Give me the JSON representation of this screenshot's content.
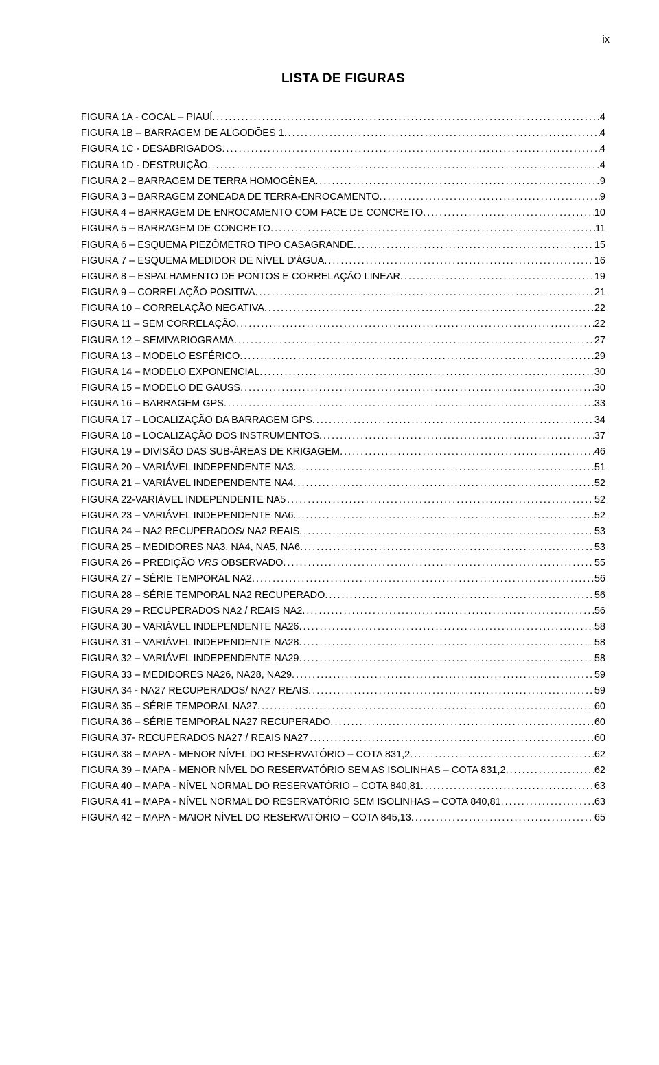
{
  "pageNumber": "ix",
  "title": "LISTA DE FIGURAS",
  "entries": [
    {
      "label": "FIGURA 1A - COCAL – PIAUÍ.",
      "page": "4"
    },
    {
      "label": "FIGURA 1B – BARRAGEM DE ALGODÕES 1.",
      "page": "4"
    },
    {
      "label": "FIGURA 1C - DESABRIGADOS.",
      "page": "4"
    },
    {
      "label": "FIGURA 1D - DESTRUIÇÃO.",
      "page": "4"
    },
    {
      "label": "FIGURA 2 – BARRAGEM DE TERRA HOMOGÊNEA.",
      "page": "9"
    },
    {
      "label": "FIGURA 3 – BARRAGEM ZONEADA DE TERRA-ENROCAMENTO.",
      "page": "9"
    },
    {
      "label": "FIGURA 4 – BARRAGEM DE ENROCAMENTO COM FACE DE CONCRETO.",
      "page": "10"
    },
    {
      "label": "FIGURA 5 – BARRAGEM DE CONCRETO.",
      "page": "11"
    },
    {
      "label": "FIGURA 6 – ESQUEMA PIEZÔMETRO TIPO CASAGRANDE.",
      "page": "15"
    },
    {
      "label": "FIGURA 7 – ESQUEMA MEDIDOR DE NÍVEL D'ÁGUA.",
      "page": "16"
    },
    {
      "label": "FIGURA 8 – ESPALHAMENTO DE PONTOS E CORRELAÇÃO LINEAR.",
      "page": "19"
    },
    {
      "label": "FIGURA 9 – CORRELAÇÃO POSITIVA.",
      "page": "21"
    },
    {
      "label": "FIGURA 10 – CORRELAÇÃO NEGATIVA.",
      "page": "22"
    },
    {
      "label": "FIGURA 11 – SEM CORRELAÇÃO.",
      "page": "22"
    },
    {
      "label": "FIGURA 12 – SEMIVARIOGRAMA.",
      "page": "27"
    },
    {
      "label": "FIGURA 13 – MODELO ESFÉRICO.",
      "page": "29"
    },
    {
      "label": "FIGURA 14 – MODELO EXPONENCIAL.",
      "page": "30"
    },
    {
      "label": "FIGURA 15 – MODELO DE GAUSS.",
      "page": "30"
    },
    {
      "label": "FIGURA 16 – BARRAGEM GPS.",
      "page": "33"
    },
    {
      "label": "FIGURA 17 – LOCALIZAÇÃO DA BARRAGEM GPS.",
      "page": "34",
      "smallcaps": true
    },
    {
      "label": "FIGURA 18 – LOCALIZAÇÃO DOS INSTRUMENTOS.",
      "page": "37"
    },
    {
      "label": "FIGURA 19 – DIVISÃO DAS SUB-ÁREAS DE KRIGAGEM.",
      "page": "46"
    },
    {
      "label": "FIGURA 20 – VARIÁVEL INDEPENDENTE NA3.",
      "page": "51"
    },
    {
      "label": "FIGURA 21 – VARIÁVEL INDEPENDENTE NA4.",
      "page": "52"
    },
    {
      "label": "FIGURA 22-VARIÁVEL INDEPENDENTE NA5",
      "page": "52"
    },
    {
      "label": "FIGURA 23 – VARIÁVEL INDEPENDENTE NA6.",
      "page": "52"
    },
    {
      "label": "FIGURA 24 – NA2 RECUPERADOS/ NA2 REAIS.",
      "page": "53"
    },
    {
      "label": "FIGURA 25 – MEDIDORES NA3, NA4, NA5, NA6.",
      "page": "53"
    },
    {
      "label": "FIGURA 26 – PREDIÇÃO VRS OBSERVADO.",
      "page": "55",
      "italicWord": "VRS"
    },
    {
      "label": "FIGURA 27 – SÉRIE TEMPORAL NA2.",
      "page": "56"
    },
    {
      "label": "FIGURA 28 – SÉRIE TEMPORAL NA2 RECUPERADO.",
      "page": "56"
    },
    {
      "label": "FIGURA 29 – RECUPERADOS NA2 / REAIS NA2.",
      "page": "56"
    },
    {
      "label": "FIGURA 30 – VARIÁVEL INDEPENDENTE NA26.",
      "page": "58"
    },
    {
      "label": "FIGURA 31 – VARIÁVEL INDEPENDENTE NA28.",
      "page": "58"
    },
    {
      "label": "FIGURA 32 – VARIÁVEL INDEPENDENTE NA29.",
      "page": "58"
    },
    {
      "label": "FIGURA 33 – MEDIDORES NA26, NA28, NA29.",
      "page": "59"
    },
    {
      "label": "FIGURA 34 - NA27 RECUPERADOS/ NA27 REAIS.",
      "page": "59"
    },
    {
      "label": "FIGURA 35 – SÉRIE TEMPORAL NA27.",
      "page": "60"
    },
    {
      "label": "FIGURA 36 – SÉRIE TEMPORAL NA27 RECUPERADO.",
      "page": "60"
    },
    {
      "label": "FIGURA 37- RECUPERADOS NA27 / REAIS NA27",
      "page": "60"
    },
    {
      "label": "FIGURA 38 – MAPA - MENOR NÍVEL DO RESERVATÓRIO – COTA 831,2.",
      "page": "62"
    },
    {
      "label": "FIGURA 39 – MAPA - MENOR NÍVEL DO RESERVATÓRIO SEM AS ISOLINHAS – COTA 831,2.",
      "page": "62"
    },
    {
      "label": "FIGURA 40 – MAPA - NÍVEL NORMAL DO RESERVATÓRIO – COTA 840,81.",
      "page": "63"
    },
    {
      "label": "FIGURA 41 – MAPA - NÍVEL NORMAL DO RESERVATÓRIO SEM ISOLINHAS – COTA 840,81.",
      "page": "63"
    },
    {
      "label": "FIGURA 42 – MAPA - MAIOR NÍVEL DO RESERVATÓRIO – COTA 845,13.",
      "page": "65"
    }
  ]
}
